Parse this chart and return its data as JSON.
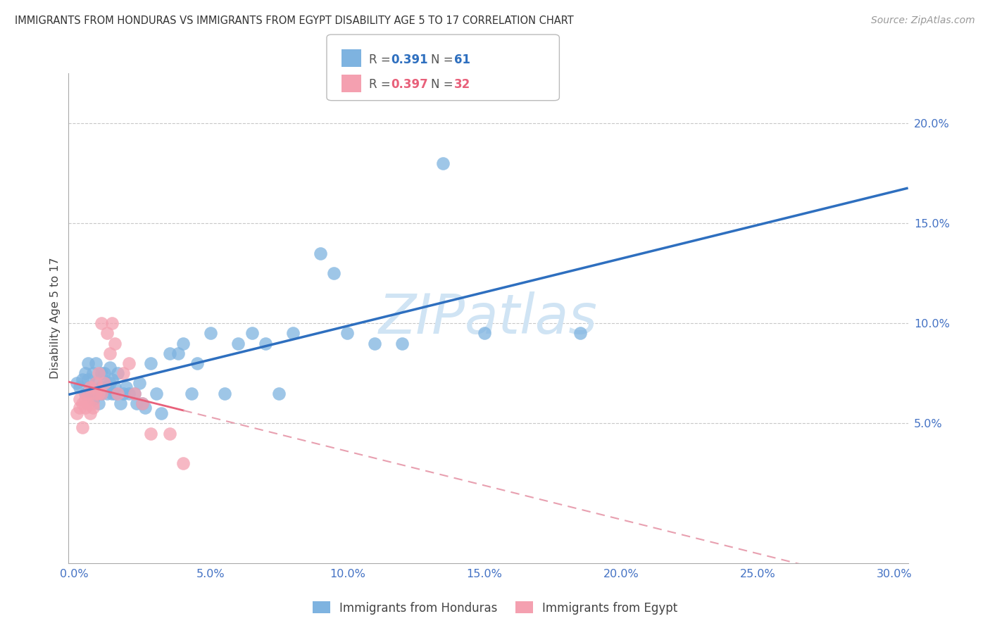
{
  "title": "IMMIGRANTS FROM HONDURAS VS IMMIGRANTS FROM EGYPT DISABILITY AGE 5 TO 17 CORRELATION CHART",
  "source": "Source: ZipAtlas.com",
  "xlabel_vals": [
    0.0,
    0.05,
    0.1,
    0.15,
    0.2,
    0.25,
    0.3
  ],
  "ylabel_vals": [
    0.05,
    0.1,
    0.15,
    0.2
  ],
  "xlim": [
    -0.002,
    0.305
  ],
  "ylim": [
    -0.02,
    0.225
  ],
  "ylabel": "Disability Age 5 to 17",
  "legend_label1": "Immigrants from Honduras",
  "legend_label2": "Immigrants from Egypt",
  "R1": 0.391,
  "N1": 61,
  "R2": 0.397,
  "N2": 32,
  "color_blue": "#7EB3E0",
  "color_pink": "#F4A0B0",
  "color_blue_line": "#2E6FBF",
  "color_pink_line": "#E8607A",
  "color_pink_dash": "#E8A0B0",
  "watermark_color": "#D0E4F4",
  "honduras_x": [
    0.001,
    0.002,
    0.003,
    0.004,
    0.004,
    0.005,
    0.005,
    0.005,
    0.006,
    0.007,
    0.007,
    0.008,
    0.008,
    0.009,
    0.009,
    0.01,
    0.01,
    0.01,
    0.011,
    0.011,
    0.012,
    0.012,
    0.013,
    0.013,
    0.014,
    0.014,
    0.015,
    0.015,
    0.016,
    0.017,
    0.018,
    0.019,
    0.02,
    0.022,
    0.023,
    0.024,
    0.025,
    0.026,
    0.028,
    0.03,
    0.032,
    0.035,
    0.038,
    0.04,
    0.043,
    0.045,
    0.05,
    0.055,
    0.06,
    0.065,
    0.07,
    0.075,
    0.08,
    0.09,
    0.095,
    0.1,
    0.11,
    0.12,
    0.15,
    0.185,
    0.135
  ],
  "honduras_y": [
    0.07,
    0.068,
    0.072,
    0.065,
    0.075,
    0.065,
    0.072,
    0.08,
    0.068,
    0.062,
    0.075,
    0.07,
    0.08,
    0.065,
    0.06,
    0.075,
    0.068,
    0.065,
    0.07,
    0.075,
    0.068,
    0.065,
    0.07,
    0.078,
    0.065,
    0.072,
    0.068,
    0.065,
    0.075,
    0.06,
    0.065,
    0.068,
    0.065,
    0.065,
    0.06,
    0.07,
    0.06,
    0.058,
    0.08,
    0.065,
    0.055,
    0.085,
    0.085,
    0.09,
    0.065,
    0.08,
    0.095,
    0.065,
    0.09,
    0.095,
    0.09,
    0.065,
    0.095,
    0.135,
    0.125,
    0.095,
    0.09,
    0.09,
    0.095,
    0.095,
    0.18
  ],
  "egypt_x": [
    0.001,
    0.002,
    0.002,
    0.003,
    0.003,
    0.004,
    0.004,
    0.005,
    0.005,
    0.006,
    0.006,
    0.007,
    0.007,
    0.008,
    0.008,
    0.009,
    0.009,
    0.01,
    0.01,
    0.011,
    0.012,
    0.013,
    0.014,
    0.015,
    0.016,
    0.018,
    0.02,
    0.022,
    0.025,
    0.028,
    0.035,
    0.04
  ],
  "egypt_y": [
    0.055,
    0.062,
    0.058,
    0.06,
    0.048,
    0.062,
    0.058,
    0.065,
    0.06,
    0.055,
    0.068,
    0.06,
    0.058,
    0.07,
    0.065,
    0.075,
    0.065,
    0.1,
    0.065,
    0.07,
    0.095,
    0.085,
    0.1,
    0.09,
    0.065,
    0.075,
    0.08,
    0.065,
    0.06,
    0.045,
    0.045,
    0.03
  ]
}
